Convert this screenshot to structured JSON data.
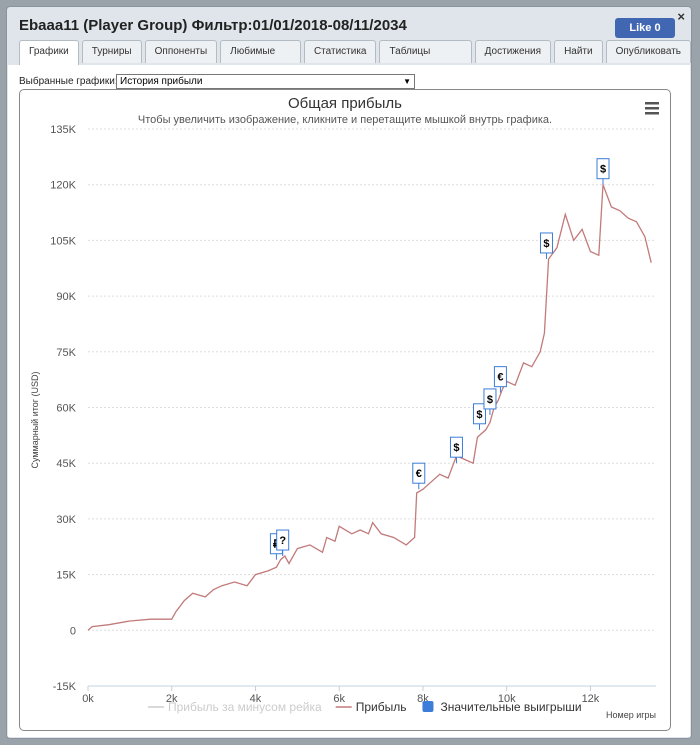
{
  "header": {
    "title": "Ebaaa11 (Player Group) Фильтр:01/01/2018-08/11/2034",
    "close": "×",
    "like_label": "Like",
    "like_count": 0
  },
  "tabs": [
    "Графики",
    "Турниры",
    "Оппоненты",
    "Любимые игры",
    "Статистика",
    "Таблицы лидеров",
    "Достижения",
    "Найти",
    "Опубликовать"
  ],
  "active_tab": 0,
  "selector": {
    "label": "Выбранные графики:",
    "value": "История прибыли"
  },
  "chart_data": {
    "type": "line",
    "title": "Общая прибыль",
    "subtitle": "Чтобы увеличить изображение, кликните и перетащите мышкой внутрь графика.",
    "y_label": "Суммарный итог (USD)",
    "x_label": "Номер игры",
    "grid": true,
    "xlim": [
      0,
      13900
    ],
    "ylim": [
      -15000,
      135000
    ],
    "xticks": [
      {
        "value": 0,
        "label": "0k"
      },
      {
        "value": 2000,
        "label": "2k"
      },
      {
        "value": 4000,
        "label": "4k"
      },
      {
        "value": 6000,
        "label": "6k"
      },
      {
        "value": 8000,
        "label": "8k"
      },
      {
        "value": 10000,
        "label": "10k"
      },
      {
        "value": 12000,
        "label": "12k"
      }
    ],
    "yticks": [
      {
        "value": -15000,
        "label": "-15K"
      },
      {
        "value": 0,
        "label": "0"
      },
      {
        "value": 15000,
        "label": "15K"
      },
      {
        "value": 30000,
        "label": "30K"
      },
      {
        "value": 45000,
        "label": "45K"
      },
      {
        "value": 60000,
        "label": "60K"
      },
      {
        "value": 75000,
        "label": "75K"
      },
      {
        "value": 90000,
        "label": "90K"
      },
      {
        "value": 105000,
        "label": "105K"
      },
      {
        "value": 120000,
        "label": "120K"
      },
      {
        "value": 135000,
        "label": "135K"
      }
    ],
    "series": [
      {
        "name": "Прибыль за минусом рейка",
        "color": "#cccccc",
        "hidden": true
      },
      {
        "name": "Прибыль",
        "color": "#c27a7a",
        "x": [
          0,
          100,
          500,
          1000,
          1500,
          2000,
          2100,
          2300,
          2500,
          2800,
          3000,
          3200,
          3500,
          3800,
          4000,
          4300,
          4500,
          4600,
          4700,
          4800,
          5000,
          5300,
          5600,
          5700,
          5900,
          6000,
          6300,
          6500,
          6700,
          6800,
          7000,
          7300,
          7600,
          7800,
          7850,
          8000,
          8200,
          8400,
          8600,
          8800,
          9000,
          9200,
          9300,
          9500,
          9600,
          9700,
          9800,
          9900,
          10000,
          10200,
          10400,
          10600,
          10800,
          10900,
          11000,
          11200,
          11400,
          11600,
          11800,
          12000,
          12200,
          12300,
          12500,
          12700,
          12900,
          13100,
          13300,
          13450
        ],
        "values": [
          0,
          1000,
          1500,
          2500,
          3000,
          3000,
          5000,
          8000,
          10000,
          9000,
          11000,
          12000,
          13000,
          12000,
          15000,
          16000,
          17000,
          19000,
          20000,
          18000,
          22000,
          23000,
          21000,
          25000,
          24000,
          28000,
          26000,
          27000,
          26000,
          29000,
          26000,
          25000,
          23000,
          25000,
          37000,
          38000,
          40000,
          42000,
          41000,
          47000,
          46000,
          45000,
          52000,
          54000,
          56000,
          60000,
          62000,
          65000,
          67000,
          66000,
          72000,
          71000,
          75000,
          80000,
          100000,
          103000,
          112000,
          105000,
          108000,
          102000,
          101000,
          120000,
          114000,
          113000,
          111000,
          110000,
          106000,
          99000
        ]
      },
      {
        "name": "Значительные выигрыши",
        "color": "#3b7dd8",
        "type": "flags",
        "x": [
          4500,
          4650,
          7900,
          8800,
          9350,
          9600,
          9850,
          10950,
          12300
        ],
        "values": [
          19000,
          20000,
          38000,
          45000,
          54000,
          58000,
          64000,
          100000,
          120000
        ],
        "titles": [
          "₽",
          "?",
          "€",
          "$",
          "$",
          "$",
          "€",
          "$",
          "$"
        ]
      }
    ]
  }
}
